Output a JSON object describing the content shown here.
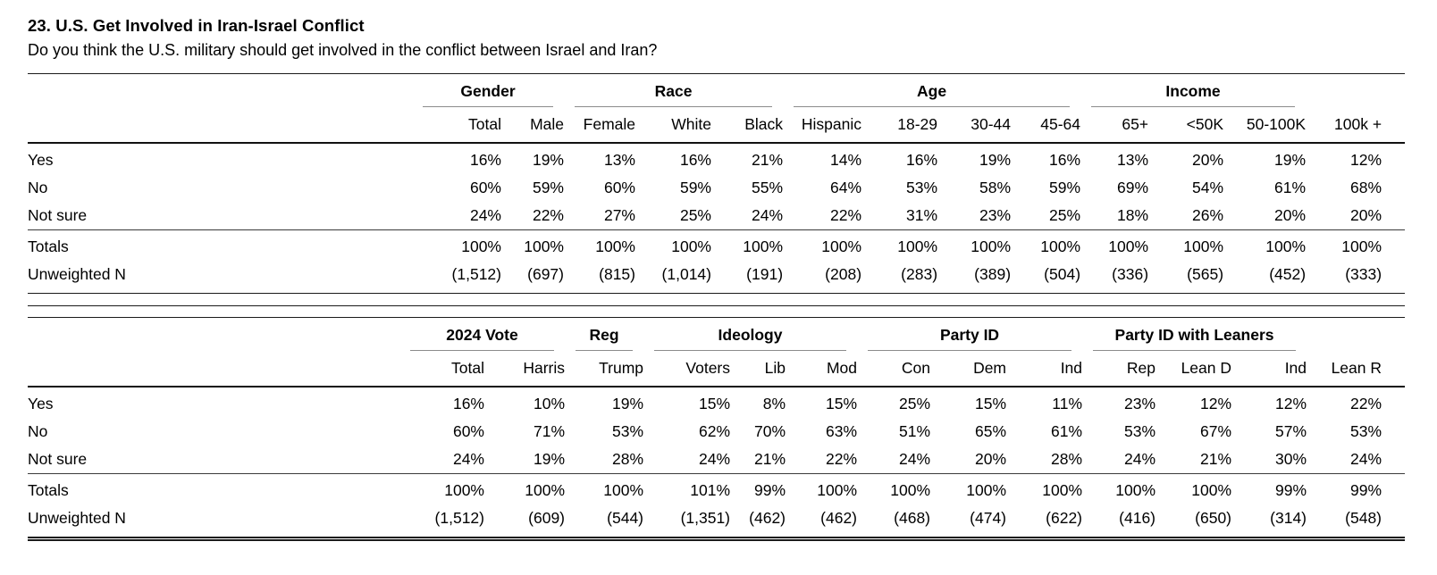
{
  "page": {
    "title": "23. U.S. Get Involved in Iran-Israel Conflict",
    "subtitle": "Do you think the U.S. military should get involved in the conflict between Israel and Iran?"
  },
  "tables": [
    {
      "name": "crosstab-demographics",
      "groups": [
        {
          "label": "",
          "span": 1
        },
        {
          "label": "Gender",
          "span": 2
        },
        {
          "label": "Race",
          "span": 3
        },
        {
          "label": "Age",
          "span": 4
        },
        {
          "label": "Income",
          "span": 3
        }
      ],
      "columns": [
        "Total",
        "Male",
        "Female",
        "White",
        "Black",
        "Hispanic",
        "18-29",
        "30-44",
        "45-64",
        "65+",
        "<50K",
        "50-100K",
        "100k +"
      ],
      "rows": [
        {
          "label": "Yes",
          "values": [
            "16%",
            "19%",
            "13%",
            "16%",
            "21%",
            "14%",
            "16%",
            "19%",
            "16%",
            "13%",
            "20%",
            "19%",
            "12%"
          ]
        },
        {
          "label": "No",
          "values": [
            "60%",
            "59%",
            "60%",
            "59%",
            "55%",
            "64%",
            "53%",
            "58%",
            "59%",
            "69%",
            "54%",
            "61%",
            "68%"
          ]
        },
        {
          "label": "Not sure",
          "values": [
            "24%",
            "22%",
            "27%",
            "25%",
            "24%",
            "22%",
            "31%",
            "23%",
            "25%",
            "18%",
            "26%",
            "20%",
            "20%"
          ]
        }
      ],
      "summary_rows": [
        {
          "label": "Totals",
          "values": [
            "100%",
            "100%",
            "100%",
            "100%",
            "100%",
            "100%",
            "100%",
            "100%",
            "100%",
            "100%",
            "100%",
            "100%",
            "100%"
          ]
        },
        {
          "label": "Unweighted N",
          "values": [
            "(1,512)",
            "(697)",
            "(815)",
            "(1,014)",
            "(191)",
            "(208)",
            "(283)",
            "(389)",
            "(504)",
            "(336)",
            "(565)",
            "(452)",
            "(333)"
          ]
        }
      ]
    },
    {
      "name": "crosstab-politics",
      "groups": [
        {
          "label": "",
          "span": 1
        },
        {
          "label": "2024 Vote",
          "span": 2
        },
        {
          "label": "Reg",
          "span": 1
        },
        {
          "label": "Ideology",
          "span": 3
        },
        {
          "label": "Party ID",
          "span": 3
        },
        {
          "label": "Party ID with Leaners",
          "span": 3
        }
      ],
      "columns": [
        "Total",
        "Harris",
        "Trump",
        "Voters",
        "Lib",
        "Mod",
        "Con",
        "Dem",
        "Ind",
        "Rep",
        "Lean D",
        "Ind",
        "Lean R"
      ],
      "rows": [
        {
          "label": "Yes",
          "values": [
            "16%",
            "10%",
            "19%",
            "15%",
            "8%",
            "15%",
            "25%",
            "15%",
            "11%",
            "23%",
            "12%",
            "12%",
            "22%"
          ]
        },
        {
          "label": "No",
          "values": [
            "60%",
            "71%",
            "53%",
            "62%",
            "70%",
            "63%",
            "51%",
            "65%",
            "61%",
            "53%",
            "67%",
            "57%",
            "53%"
          ]
        },
        {
          "label": "Not sure",
          "values": [
            "24%",
            "19%",
            "28%",
            "24%",
            "21%",
            "22%",
            "24%",
            "20%",
            "28%",
            "24%",
            "21%",
            "30%",
            "24%"
          ]
        }
      ],
      "summary_rows": [
        {
          "label": "Totals",
          "values": [
            "100%",
            "100%",
            "100%",
            "101%",
            "99%",
            "100%",
            "100%",
            "100%",
            "100%",
            "100%",
            "100%",
            "99%",
            "99%"
          ]
        },
        {
          "label": "Unweighted N",
          "values": [
            "(1,512)",
            "(609)",
            "(544)",
            "(1,351)",
            "(462)",
            "(462)",
            "(468)",
            "(474)",
            "(622)",
            "(416)",
            "(650)",
            "(314)",
            "(548)"
          ]
        }
      ]
    }
  ]
}
